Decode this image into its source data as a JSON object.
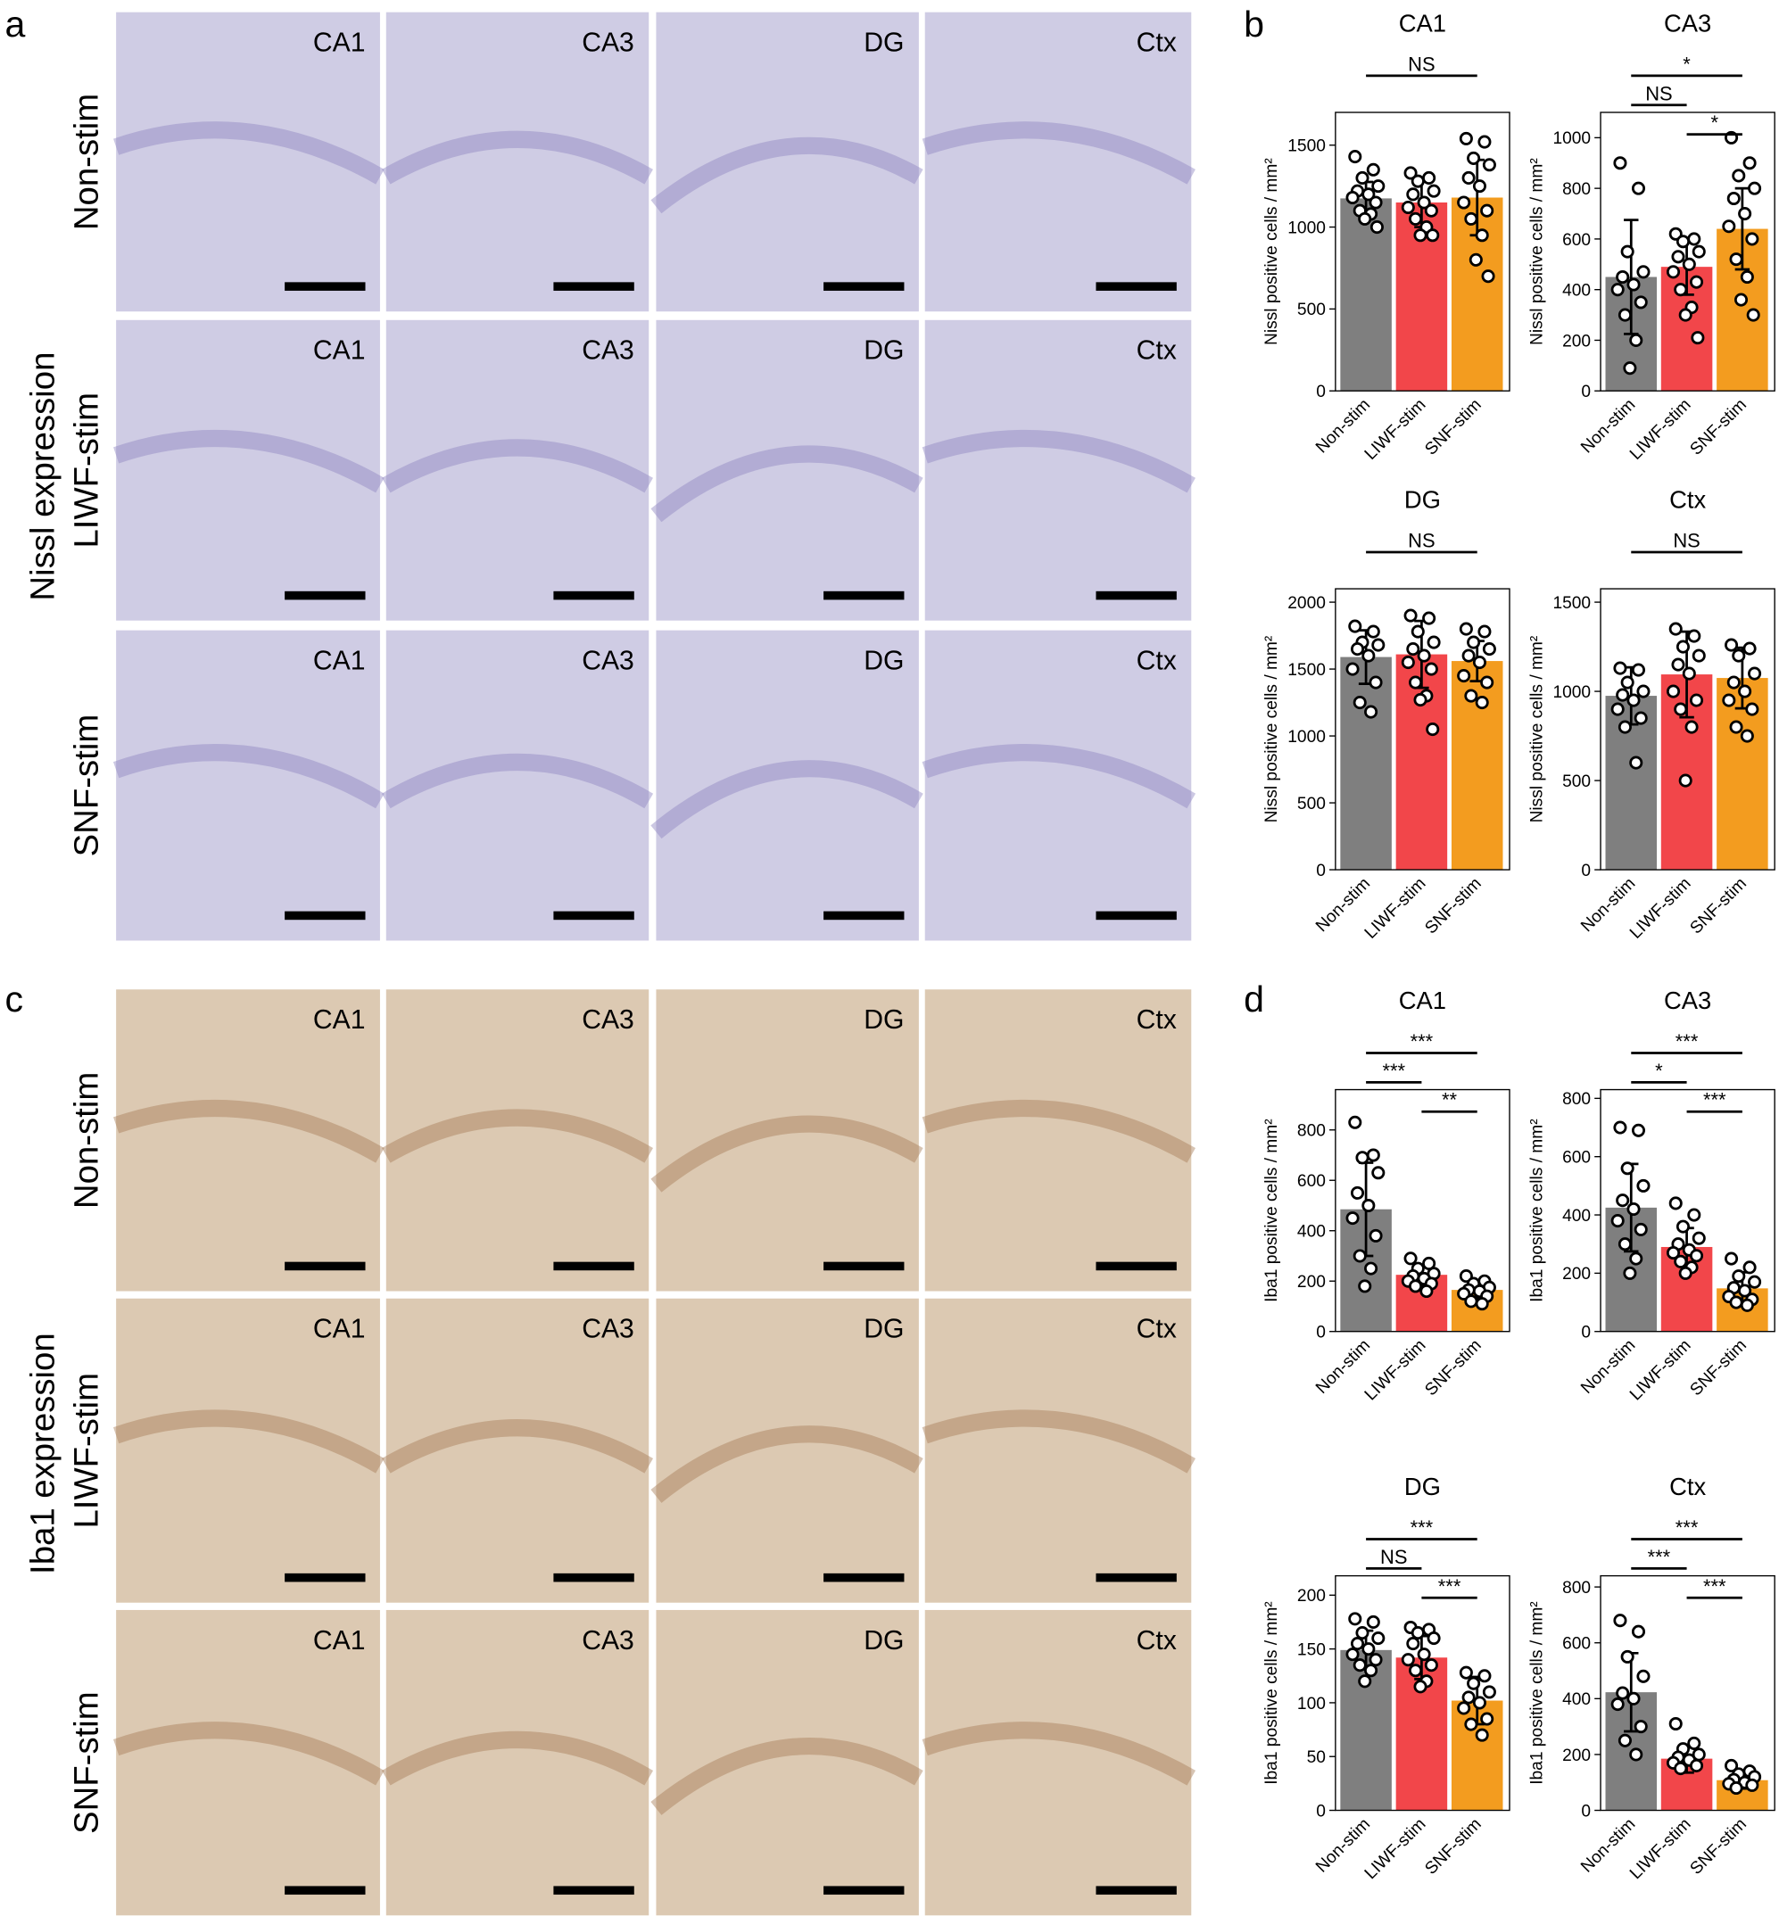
{
  "panels": {
    "a": {
      "letter": "a",
      "title": "Nissl expression",
      "rows": [
        "Non-stim",
        "LIWF-stim",
        "SNF-stim"
      ],
      "columns": [
        "CA1",
        "CA3",
        "DG",
        "Ctx"
      ]
    },
    "b": {
      "letter": "b"
    },
    "c": {
      "letter": "c",
      "title": "Iba1 expression",
      "rows": [
        "Non-stim",
        "LIWF-stim",
        "SNF-stim"
      ],
      "columns": [
        "CA1",
        "CA3",
        "DG",
        "Ctx"
      ]
    },
    "d": {
      "letter": "d"
    }
  },
  "chart_data": [
    {
      "type": "bar",
      "title": "CA1",
      "ylabel": "Nissl positive cells / mm²",
      "categories": [
        "Non-stim",
        "LIWF-stim",
        "SNF-stim"
      ],
      "colors": [
        "#7f7f7f",
        "#f2464a",
        "#f39c1f"
      ],
      "values": [
        1175,
        1150,
        1180
      ],
      "errors": [
        100,
        150,
        230
      ],
      "points": [
        [
          1430,
          1350,
          1300,
          1250,
          1220,
          1200,
          1180,
          1150,
          1100,
          1080,
          1050,
          1000
        ],
        [
          1330,
          1300,
          1280,
          1220,
          1200,
          1150,
          1120,
          1100,
          1050,
          1000,
          950,
          950
        ],
        [
          1540,
          1520,
          1420,
          1380,
          1300,
          1250,
          1150,
          1100,
          1050,
          950,
          800,
          700
        ]
      ],
      "ylim": [
        0,
        1700
      ],
      "yticks": [
        0,
        500,
        1000,
        1500
      ],
      "brackets": [
        {
          "text": "NS",
          "between": [
            "Non-stim",
            "SNF-stim"
          ]
        }
      ]
    },
    {
      "type": "bar",
      "title": "CA3",
      "ylabel": "Nissl positive cells / mm²",
      "categories": [
        "Non-stim",
        "LIWF-stim",
        "SNF-stim"
      ],
      "colors": [
        "#7f7f7f",
        "#f2464a",
        "#f39c1f"
      ],
      "values": [
        450,
        490,
        640
      ],
      "errors": [
        225,
        110,
        160
      ],
      "points": [
        [
          900,
          800,
          550,
          470,
          450,
          420,
          400,
          350,
          300,
          200,
          90
        ],
        [
          620,
          600,
          590,
          550,
          530,
          500,
          470,
          430,
          400,
          330,
          300,
          210
        ],
        [
          1000,
          900,
          850,
          800,
          760,
          700,
          650,
          600,
          520,
          450,
          360,
          300
        ]
      ],
      "ylim": [
        0,
        1100
      ],
      "yticks": [
        0,
        200,
        400,
        600,
        800,
        1000
      ],
      "brackets": [
        {
          "text": "*",
          "between": [
            "Non-stim",
            "SNF-stim"
          ]
        },
        {
          "text": "NS",
          "between": [
            "Non-stim",
            "LIWF-stim"
          ]
        },
        {
          "text": "*",
          "between": [
            "LIWF-stim",
            "SNF-stim"
          ]
        }
      ]
    },
    {
      "type": "bar",
      "title": "DG",
      "ylabel": "Nissl positive cells / mm²",
      "categories": [
        "Non-stim",
        "LIWF-stim",
        "SNF-stim"
      ],
      "colors": [
        "#7f7f7f",
        "#f2464a",
        "#f39c1f"
      ],
      "values": [
        1590,
        1610,
        1560
      ],
      "errors": [
        200,
        250,
        150
      ],
      "points": [
        [
          1820,
          1780,
          1700,
          1680,
          1650,
          1600,
          1500,
          1400,
          1250,
          1180
        ],
        [
          1900,
          1880,
          1780,
          1700,
          1650,
          1600,
          1550,
          1500,
          1400,
          1300,
          1270,
          1050
        ],
        [
          1800,
          1780,
          1700,
          1650,
          1600,
          1550,
          1450,
          1400,
          1300,
          1250
        ]
      ],
      "ylim": [
        0,
        2100
      ],
      "yticks": [
        0,
        500,
        1000,
        1500,
        2000
      ],
      "brackets": [
        {
          "text": "NS",
          "between": [
            "Non-stim",
            "SNF-stim"
          ]
        }
      ]
    },
    {
      "type": "bar",
      "title": "Ctx",
      "ylabel": "Nissl positive cells / mm²",
      "categories": [
        "Non-stim",
        "LIWF-stim",
        "SNF-stim"
      ],
      "colors": [
        "#7f7f7f",
        "#f2464a",
        "#f39c1f"
      ],
      "values": [
        975,
        1095,
        1075
      ],
      "errors": [
        160,
        240,
        170
      ],
      "points": [
        [
          1130,
          1120,
          1050,
          1000,
          980,
          950,
          900,
          850,
          800,
          600
        ],
        [
          1350,
          1310,
          1250,
          1200,
          1150,
          1100,
          1000,
          950,
          900,
          800,
          500
        ],
        [
          1260,
          1240,
          1200,
          1100,
          1050,
          1000,
          950,
          900,
          800,
          750
        ]
      ],
      "ylim": [
        0,
        1575
      ],
      "yticks": [
        0,
        500,
        1000,
        1500
      ],
      "brackets": [
        {
          "text": "NS",
          "between": [
            "Non-stim",
            "SNF-stim"
          ]
        }
      ]
    },
    {
      "type": "bar",
      "title": "CA1",
      "ylabel": "Iba1 positive cells / mm²",
      "categories": [
        "Non-stim",
        "LIWF-stim",
        "SNF-stim"
      ],
      "colors": [
        "#7f7f7f",
        "#f2464a",
        "#f39c1f"
      ],
      "values": [
        485,
        225,
        165
      ],
      "errors": [
        185,
        40,
        35
      ],
      "points": [
        [
          830,
          700,
          690,
          630,
          550,
          500,
          450,
          380,
          300,
          250,
          180
        ],
        [
          290,
          270,
          250,
          230,
          220,
          210,
          200,
          190,
          180,
          160
        ],
        [
          220,
          200,
          190,
          175,
          165,
          160,
          150,
          140,
          120,
          110
        ]
      ],
      "ylim": [
        0,
        960
      ],
      "yticks": [
        0,
        200,
        400,
        600,
        800
      ],
      "brackets": [
        {
          "text": "***",
          "between": [
            "Non-stim",
            "SNF-stim"
          ]
        },
        {
          "text": "***",
          "between": [
            "Non-stim",
            "LIWF-stim"
          ]
        },
        {
          "text": "**",
          "between": [
            "LIWF-stim",
            "SNF-stim"
          ]
        }
      ]
    },
    {
      "type": "bar",
      "title": "CA3",
      "ylabel": "Iba1 positive cells / mm²",
      "categories": [
        "Non-stim",
        "LIWF-stim",
        "SNF-stim"
      ],
      "colors": [
        "#7f7f7f",
        "#f2464a",
        "#f39c1f"
      ],
      "values": [
        425,
        290,
        148
      ],
      "errors": [
        150,
        65,
        55
      ],
      "points": [
        [
          700,
          690,
          560,
          500,
          450,
          420,
          380,
          350,
          300,
          250,
          200
        ],
        [
          440,
          400,
          360,
          320,
          300,
          280,
          270,
          260,
          240,
          220,
          200
        ],
        [
          250,
          220,
          190,
          170,
          150,
          140,
          120,
          110,
          100,
          90
        ]
      ],
      "ylim": [
        0,
        830
      ],
      "yticks": [
        0,
        200,
        400,
        600,
        800
      ],
      "brackets": [
        {
          "text": "***",
          "between": [
            "Non-stim",
            "SNF-stim"
          ]
        },
        {
          "text": "*",
          "between": [
            "Non-stim",
            "LIWF-stim"
          ]
        },
        {
          "text": "***",
          "between": [
            "LIWF-stim",
            "SNF-stim"
          ]
        }
      ]
    },
    {
      "type": "bar",
      "title": "DG",
      "ylabel": "Iba1 positive cells / mm²",
      "categories": [
        "Non-stim",
        "LIWF-stim",
        "SNF-stim"
      ],
      "colors": [
        "#7f7f7f",
        "#f2464a",
        "#f39c1f"
      ],
      "values": [
        149,
        142,
        102
      ],
      "errors": [
        18,
        20,
        22
      ],
      "points": [
        [
          178,
          175,
          165,
          160,
          155,
          150,
          145,
          140,
          135,
          130,
          120
        ],
        [
          170,
          168,
          165,
          160,
          155,
          145,
          140,
          135,
          130,
          120,
          115
        ],
        [
          128,
          125,
          118,
          110,
          105,
          100,
          95,
          85,
          80,
          70
        ]
      ],
      "ylim": [
        0,
        218
      ],
      "yticks": [
        0,
        50,
        100,
        150,
        200
      ],
      "brackets": [
        {
          "text": "***",
          "between": [
            "Non-stim",
            "SNF-stim"
          ]
        },
        {
          "text": "NS",
          "between": [
            "Non-stim",
            "LIWF-stim"
          ]
        },
        {
          "text": "***",
          "between": [
            "LIWF-stim",
            "SNF-stim"
          ]
        }
      ]
    },
    {
      "type": "bar",
      "title": "Ctx",
      "ylabel": "Iba1 positive cells / mm²",
      "categories": [
        "Non-stim",
        "LIWF-stim",
        "SNF-stim"
      ],
      "colors": [
        "#7f7f7f",
        "#f2464a",
        "#f39c1f"
      ],
      "values": [
        423,
        185,
        108
      ],
      "errors": [
        140,
        50,
        30
      ],
      "points": [
        [
          680,
          640,
          550,
          480,
          420,
          400,
          380,
          300,
          250,
          200
        ],
        [
          310,
          240,
          220,
          200,
          190,
          180,
          170,
          160,
          150
        ],
        [
          160,
          140,
          130,
          120,
          110,
          100,
          95,
          90,
          80
        ]
      ],
      "ylim": [
        0,
        840
      ],
      "yticks": [
        0,
        200,
        400,
        600,
        800
      ],
      "brackets": [
        {
          "text": "***",
          "between": [
            "Non-stim",
            "SNF-stim"
          ]
        },
        {
          "text": "***",
          "between": [
            "Non-stim",
            "LIWF-stim"
          ]
        },
        {
          "text": "***",
          "between": [
            "LIWF-stim",
            "SNF-stim"
          ]
        }
      ]
    }
  ]
}
